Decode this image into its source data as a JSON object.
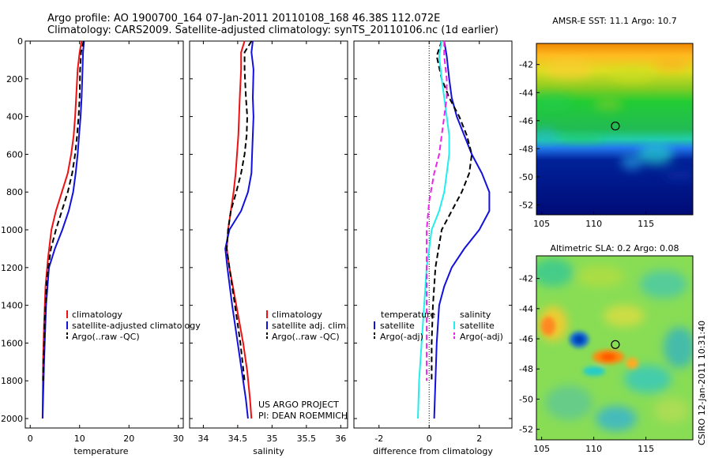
{
  "header": {
    "line1": "Argo profile: AO 1900700_164 07-Jan-2011 20110108_168 46.38S 112.072E",
    "line2": "Climatology: CARS2009. Satellite-adjusted climatology: synTS_20110106.nc (1d earlier)"
  },
  "credit": {
    "line1": "US ARGO PROJECT",
    "line2": "PI: DEAN ROEMMICH"
  },
  "side_label": "CSIRO 12-Jan-2011 10:31:40",
  "colors": {
    "red": "#ee1111",
    "blue": "#1111dd",
    "black": "#000000",
    "cyan": "#22eeee",
    "magenta": "#ee22ee"
  },
  "chart_data": [
    {
      "type": "line",
      "xlabel": "temperature",
      "xlim": [
        -1,
        31
      ],
      "ylim": [
        0,
        2050
      ],
      "xticks": [
        0,
        10,
        20,
        30
      ],
      "yticks": [
        0,
        200,
        400,
        600,
        800,
        1000,
        1200,
        1400,
        1600,
        1800,
        2000
      ],
      "y_reversed": true,
      "legend_placement": "lower-right",
      "series": [
        {
          "name": "climatology",
          "color": "red",
          "dash": false,
          "x": [
            10.4,
            10,
            9.6,
            9.3,
            9.1,
            8.8,
            8.3,
            7.6,
            6.4,
            5.2,
            4.3,
            3.6,
            3.1,
            2.8,
            2.6,
            2.5
          ],
          "y": [
            0,
            60,
            150,
            300,
            400,
            500,
            600,
            700,
            800,
            900,
            1000,
            1150,
            1300,
            1500,
            1700,
            2000
          ]
        },
        {
          "name": "satellite-adjusted climatology",
          "color": "blue",
          "dash": false,
          "x": [
            10.9,
            10.7,
            10.6,
            10.4,
            10.2,
            9.9,
            9.6,
            9.2,
            8.7,
            7.8,
            6.5,
            5.0,
            3.8,
            3.2,
            2.8,
            2.5
          ],
          "y": [
            0,
            60,
            150,
            300,
            400,
            500,
            600,
            700,
            800,
            900,
            1000,
            1100,
            1200,
            1400,
            1700,
            2000
          ]
        },
        {
          "name": "Argo(..raw -QC)",
          "color": "black",
          "dash": true,
          "x": [
            10.8,
            10.3,
            10.1,
            10.0,
            9.8,
            9.5,
            9.1,
            8.5,
            7.6,
            6.4,
            5.2,
            4.2,
            3.4,
            2.9,
            2.6
          ],
          "y": [
            0,
            60,
            150,
            300,
            400,
            500,
            600,
            700,
            800,
            900,
            1000,
            1100,
            1250,
            1500,
            1800
          ]
        }
      ]
    },
    {
      "type": "line",
      "xlabel": "salinity",
      "xlim": [
        33.8,
        36.1
      ],
      "ylim": [
        0,
        2050
      ],
      "xticks": [
        34,
        34.5,
        35,
        35.5,
        36
      ],
      "y_reversed": true,
      "legend_placement": "lower-right",
      "series": [
        {
          "name": "climatology",
          "color": "red",
          "dash": false,
          "x": [
            34.6,
            34.55,
            34.55,
            34.53,
            34.52,
            34.51,
            34.49,
            34.47,
            34.44,
            34.4,
            34.36,
            34.34,
            34.38,
            34.48,
            34.58,
            34.64,
            34.68,
            34.7
          ],
          "y": [
            0,
            60,
            150,
            300,
            400,
            500,
            600,
            700,
            800,
            900,
            1000,
            1100,
            1200,
            1400,
            1600,
            1750,
            1900,
            2000
          ]
        },
        {
          "name": "satellite adj. clim.",
          "color": "blue",
          "dash": false,
          "x": [
            34.72,
            34.7,
            34.73,
            34.72,
            34.73,
            34.72,
            34.71,
            34.7,
            34.65,
            34.55,
            34.38,
            34.32,
            34.35,
            34.42,
            34.5,
            34.56,
            34.62,
            34.65
          ],
          "y": [
            0,
            60,
            150,
            300,
            400,
            500,
            600,
            700,
            800,
            900,
            1000,
            1100,
            1200,
            1400,
            1600,
            1750,
            1900,
            2000
          ]
        },
        {
          "name": "Argo(..raw -QC)",
          "color": "black",
          "dash": true,
          "x": [
            34.7,
            34.6,
            34.6,
            34.62,
            34.64,
            34.63,
            34.6,
            34.55,
            34.48,
            34.4,
            34.36,
            34.34,
            34.38,
            34.46,
            34.54,
            34.6
          ],
          "y": [
            0,
            60,
            150,
            300,
            400,
            500,
            600,
            700,
            800,
            900,
            1000,
            1100,
            1200,
            1400,
            1600,
            1800
          ]
        }
      ]
    },
    {
      "type": "line",
      "xlabel": "difference from climatology",
      "xlim": [
        -3,
        3.3
      ],
      "ylim": [
        0,
        2050
      ],
      "xticks": [
        -2,
        0,
        2
      ],
      "y_reversed": true,
      "legend_placement": "lower-left and lower-right",
      "legend_titles": {
        "left": "temperature",
        "right": "salinity"
      },
      "series": [
        {
          "name": "satellite",
          "group": "temperature",
          "color": "blue",
          "dash": false,
          "x": [
            0.6,
            0.7,
            0.8,
            0.9,
            1.1,
            1.4,
            1.7,
            2.1,
            2.4,
            2.4,
            2.0,
            1.4,
            0.9,
            0.6,
            0.4,
            0.3,
            0.25,
            0.2
          ],
          "y": [
            0,
            80,
            200,
            300,
            400,
            500,
            600,
            700,
            800,
            900,
            1000,
            1100,
            1200,
            1300,
            1400,
            1600,
            1800,
            2000
          ]
        },
        {
          "name": "Argo(-adj)",
          "group": "temperature",
          "color": "black",
          "dash": true,
          "x": [
            0.5,
            0.3,
            0.5,
            0.8,
            1.2,
            1.5,
            1.7,
            1.6,
            1.3,
            0.9,
            0.5,
            0.25,
            0.15,
            0.1,
            0.1
          ],
          "y": [
            0,
            80,
            200,
            300,
            400,
            500,
            600,
            700,
            800,
            900,
            1000,
            1200,
            1400,
            1600,
            1800
          ]
        },
        {
          "name": "satellite",
          "group": "salinity",
          "color": "cyan",
          "dash": false,
          "x": [
            0.5,
            0.4,
            0.5,
            0.6,
            0.7,
            0.8,
            0.8,
            0.7,
            0.6,
            0.4,
            0.1,
            -0.1,
            -0.2,
            -0.3,
            -0.4,
            -0.45
          ],
          "y": [
            0,
            80,
            200,
            300,
            400,
            500,
            600,
            700,
            800,
            900,
            1000,
            1200,
            1400,
            1600,
            1800,
            2000
          ]
        },
        {
          "name": "Argo(-adj)",
          "group": "salinity",
          "color": "magenta",
          "dash": true,
          "x": [
            0.6,
            0.6,
            0.7,
            0.7,
            0.6,
            0.5,
            0.4,
            0.2,
            0.0,
            -0.1,
            -0.1,
            -0.1,
            -0.1,
            -0.1
          ],
          "y": [
            0,
            80,
            200,
            300,
            400,
            500,
            600,
            700,
            850,
            1000,
            1200,
            1400,
            1600,
            1800
          ]
        }
      ]
    },
    {
      "type": "heatmap",
      "title": "AMSR-E SST: 11.1 Argo: 10.7",
      "xlim": [
        104.5,
        119.5
      ],
      "ylim": [
        -52.7,
        -40.5
      ],
      "xticks": [
        105,
        110,
        115
      ],
      "yticks": [
        -42,
        -44,
        -46,
        -48,
        -50,
        -52
      ],
      "marker": {
        "lon": 112.07,
        "lat": -46.38
      }
    },
    {
      "type": "heatmap",
      "title": "Altimetric SLA: 0.2 Argo: 0.08",
      "xlim": [
        104.5,
        119.5
      ],
      "ylim": [
        -52.7,
        -40.5
      ],
      "xticks": [
        105,
        110,
        115
      ],
      "yticks": [
        -42,
        -44,
        -46,
        -48,
        -50,
        -52
      ],
      "marker": {
        "lon": 112.07,
        "lat": -46.38
      }
    }
  ]
}
